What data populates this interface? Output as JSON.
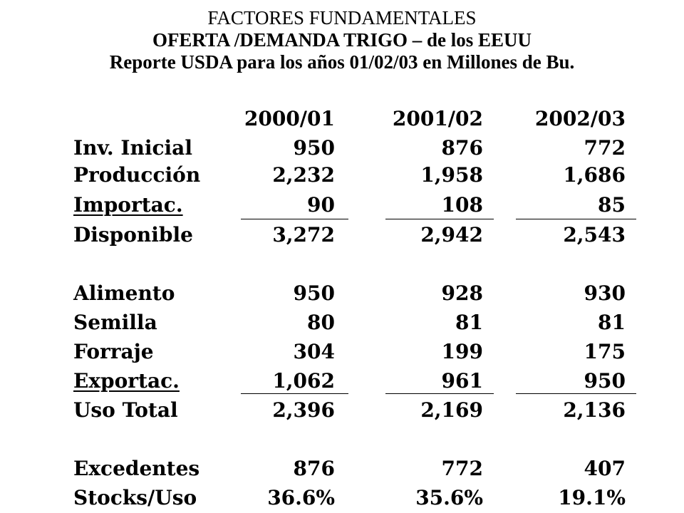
{
  "header": {
    "line1": "FACTORES FUNDAMENTALES",
    "line2": "OFERTA /DEMANDA TRIGO – de los EEUU",
    "line3": "Reporte USDA para los años 01/02/03  en Millones de Bu."
  },
  "table": {
    "columns": [
      "2000/01",
      "2001/02",
      "2002/03"
    ],
    "rows": [
      {
        "label": "Inv. Inicial",
        "values": [
          "950",
          "876",
          "772"
        ]
      },
      {
        "label": "Producción",
        "values": [
          "2,232",
          "1,958",
          "1,686"
        ]
      },
      {
        "label": "Importac.",
        "values": [
          "90",
          "108",
          "85"
        ]
      },
      {
        "label": "Disponible",
        "values": [
          "3,272",
          "2,942",
          "2,543"
        ]
      },
      {
        "label": "Alimento",
        "values": [
          "950",
          "928",
          "930"
        ]
      },
      {
        "label": "Semilla",
        "values": [
          "80",
          "81",
          "81"
        ]
      },
      {
        "label": "Forraje",
        "values": [
          "304",
          "199",
          "175"
        ]
      },
      {
        "label": "Exportac.",
        "values": [
          "1,062",
          "961",
          "950"
        ]
      },
      {
        "label": "Uso Total",
        "values": [
          "2,396",
          "2,169",
          "2,136"
        ]
      },
      {
        "label": "Excedentes",
        "values": [
          "876",
          "772",
          "407"
        ]
      },
      {
        "label": "Stocks/Uso",
        "values": [
          "36.6%",
          "35.6%",
          "19.1%"
        ]
      }
    ]
  }
}
